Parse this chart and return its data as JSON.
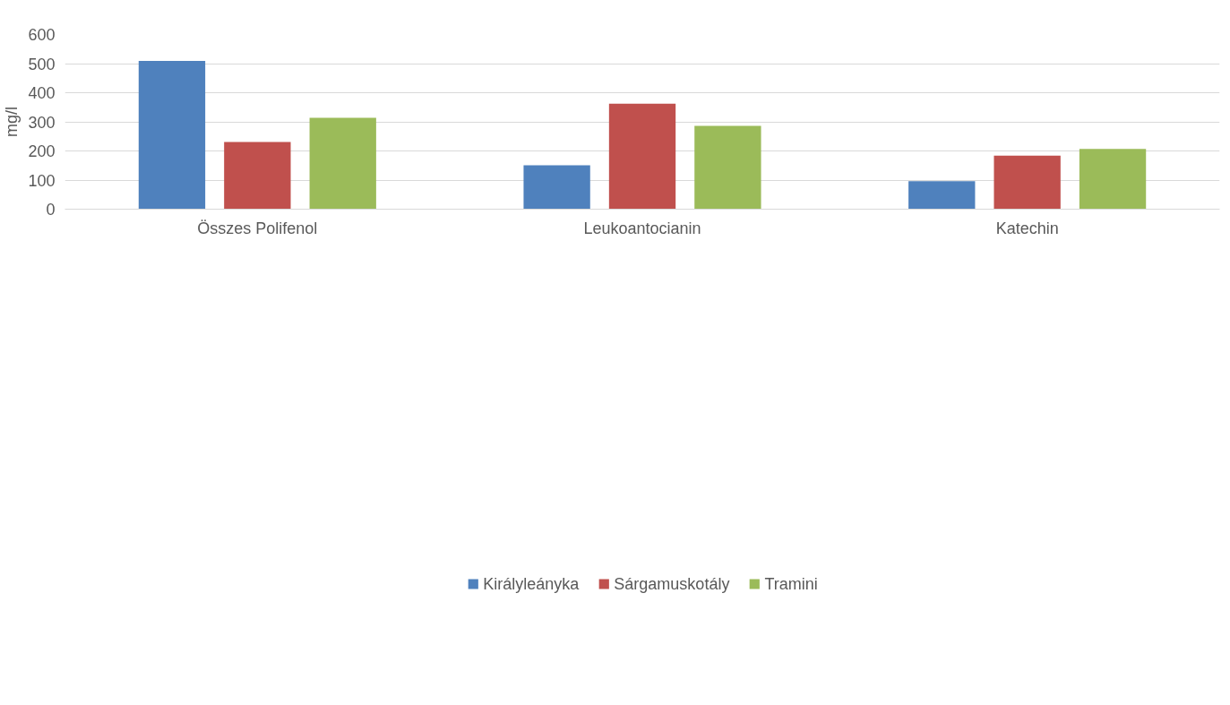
{
  "chart_data": {
    "type": "bar",
    "ylabel": "mg/l",
    "categories": [
      "Összes Polifenol",
      "Leukoantocianin",
      "Katechin"
    ],
    "series": [
      {
        "name": "Királyleányka",
        "color": "#4f81bd",
        "values": [
          509,
          151,
          96
        ]
      },
      {
        "name": "Sárgamuskotály",
        "color": "#c0504d",
        "values": [
          231,
          362,
          184
        ]
      },
      {
        "name": "Tramini",
        "color": "#9bbb59",
        "values": [
          314,
          286,
          207
        ]
      }
    ],
    "ylim": [
      0,
      600
    ],
    "yticks": [
      0,
      100,
      200,
      300,
      400,
      500,
      600
    ],
    "grid": "y",
    "legend": "bottom"
  }
}
